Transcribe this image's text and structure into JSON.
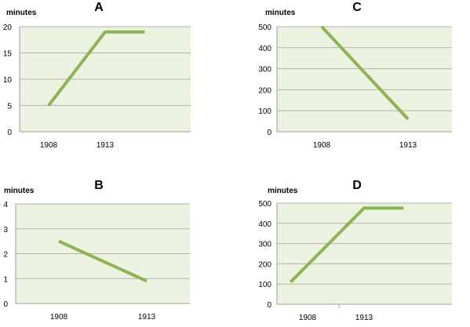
{
  "colors": {
    "plot_background": "#ecf2e0",
    "line": "#8db353",
    "grid": "#b3b3b3",
    "axis": "#9e9e9e"
  },
  "chart_data": [
    {
      "id": "A",
      "type": "line",
      "title": "A",
      "ylabel": "minutes",
      "xlabel": "",
      "categories": [
        "1908",
        "1913"
      ],
      "ylim": [
        0,
        20
      ],
      "yticks": [
        0,
        5,
        10,
        15,
        20
      ],
      "grid": true,
      "series": [
        {
          "points": [
            {
              "x": 1908,
              "y": 5
            },
            {
              "x": 1913,
              "y": 19
            },
            {
              "x": 1916.5,
              "y": 19
            }
          ]
        }
      ]
    },
    {
      "id": "B",
      "type": "line",
      "title": "B",
      "ylabel": "minutes",
      "xlabel": "",
      "categories": [
        "1908",
        "1913"
      ],
      "ylim": [
        0,
        4
      ],
      "yticks": [
        0,
        1,
        2,
        3,
        4
      ],
      "grid": true,
      "series": [
        {
          "points": [
            {
              "x": 1908,
              "y": 2.5
            },
            {
              "x": 1913,
              "y": 0.9
            }
          ]
        }
      ]
    },
    {
      "id": "C",
      "type": "line",
      "title": "C",
      "ylabel": "minutes",
      "xlabel": "",
      "categories": [
        "1908",
        "1913"
      ],
      "ylim": [
        0,
        500
      ],
      "yticks": [
        0,
        100,
        200,
        300,
        400,
        500
      ],
      "grid": true,
      "series": [
        {
          "points": [
            {
              "x": 1908,
              "y": 500
            },
            {
              "x": 1913,
              "y": 60
            }
          ]
        }
      ]
    },
    {
      "id": "D",
      "type": "line",
      "title": "D",
      "ylabel": "minutes",
      "xlabel": "",
      "categories": [
        "1908",
        "1913"
      ],
      "ylim": [
        0,
        500
      ],
      "yticks": [
        0,
        100,
        200,
        300,
        400,
        500
      ],
      "grid": true,
      "series": [
        {
          "points": [
            {
              "x": 1906.5,
              "y": 110
            },
            {
              "x": 1913,
              "y": 475
            },
            {
              "x": 1916.5,
              "y": 475
            }
          ]
        }
      ]
    }
  ]
}
